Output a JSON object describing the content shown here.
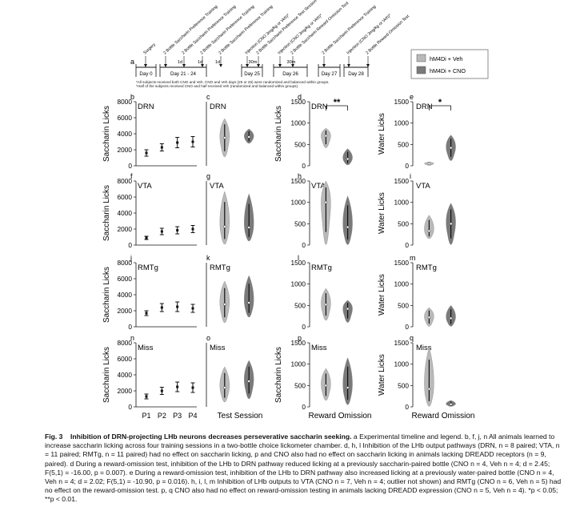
{
  "timeline": {
    "panel_letter": "a",
    "day_labels": [
      "Day 0",
      "Day 21 - 24",
      "Day 25",
      "Day 26",
      "Day 27",
      "Day 28"
    ],
    "gap_labels": [
      "1d",
      "1d",
      "1d",
      "30m",
      "30m"
    ],
    "events": [
      "Surgery",
      "2 Bottle Saccharin Preference Training",
      "2 Bottle Saccharin Preference Training",
      "2 Bottle Saccharin Preference Training",
      "2 Bottle Saccharin Preference Training",
      "Injection (CNO 3mg/kg or Veh)*",
      "2 Bottle Saccharin Preference Test Session",
      "Injection (CNO 3mg/kg or Veh)*",
      "2 Bottle Saccharin Reward Omission Test",
      "2 Bottle Saccharin Preference Training",
      "Injection (CNO 3mg/kg or Veh)*",
      "2 Bottle Reward Omission Test"
    ],
    "footnote_1": "*All subjects received both CNO and Veh. CNO and Veh days (25 or 26) were randomized and balanced within groups.",
    "footnote_2": "*Half of the subjects received CNO and half received Veh (randomized and balanced within groups)."
  },
  "legend": {
    "items": [
      {
        "label": "hM4Di + Veh",
        "color": "#b9b9b9"
      },
      {
        "label": "hM4Di + CNO",
        "color": "#7a7a7a"
      }
    ]
  },
  "row_labels": [
    "DRN",
    "VTA",
    "RMTg",
    "Miss"
  ],
  "chart_data": [
    {
      "panel": "b",
      "type": "scatter",
      "region": "DRN",
      "ylabel": "Saccharin Licks",
      "ylim": [
        0,
        8000
      ],
      "yticks": [
        0,
        2000,
        4000,
        6000,
        8000
      ],
      "categories": [
        "P1",
        "P2",
        "P3",
        "P4"
      ],
      "values": [
        1600,
        2300,
        2900,
        3000
      ],
      "errors": [
        400,
        450,
        650,
        650
      ]
    },
    {
      "panel": "c",
      "type": "violin",
      "region": "DRN",
      "ylim": [
        0,
        8000
      ],
      "series": [
        {
          "name": "hM4Di + Veh",
          "median": 3500,
          "min": 1100,
          "max": 5900
        },
        {
          "name": "hM4Di + CNO",
          "median": 3600,
          "min": 2800,
          "max": 4600
        }
      ]
    },
    {
      "panel": "d",
      "type": "violin",
      "region": "DRN",
      "ylabel": "Saccharin Licks",
      "ylim": [
        0,
        1500
      ],
      "yticks": [
        0,
        500,
        1000,
        1500
      ],
      "significance": "**",
      "series": [
        {
          "name": "hM4Di + Veh",
          "median": 700,
          "min": 420,
          "max": 880
        },
        {
          "name": "hM4Di + CNO",
          "median": 160,
          "min": 20,
          "max": 400
        }
      ]
    },
    {
      "panel": "e",
      "type": "violin",
      "region": "DRN",
      "ylabel": "Water Licks",
      "ylim": [
        0,
        1500
      ],
      "yticks": [
        0,
        500,
        1000,
        1500
      ],
      "significance": "*",
      "series": [
        {
          "name": "hM4Di + Veh",
          "median": 50,
          "min": 10,
          "max": 90
        },
        {
          "name": "hM4Di + CNO",
          "median": 420,
          "min": 120,
          "max": 720
        }
      ]
    },
    {
      "panel": "f",
      "type": "scatter",
      "region": "VTA",
      "ylabel": "Saccharin Licks",
      "ylim": [
        0,
        8000
      ],
      "yticks": [
        0,
        2000,
        4000,
        6000,
        8000
      ],
      "categories": [
        "P1",
        "P2",
        "P3",
        "P4"
      ],
      "values": [
        900,
        1700,
        1850,
        2000
      ],
      "errors": [
        200,
        400,
        450,
        450
      ]
    },
    {
      "panel": "g",
      "type": "violin",
      "region": "VTA",
      "ylim": [
        0,
        8000
      ],
      "series": [
        {
          "name": "hM4Di + Veh",
          "median": 2300,
          "min": 100,
          "max": 6700
        },
        {
          "name": "hM4Di + CNO",
          "median": 2200,
          "min": 500,
          "max": 6400
        }
      ]
    },
    {
      "panel": "h",
      "type": "violin",
      "region": "VTA",
      "ylim": [
        0,
        1500
      ],
      "yticks": [
        0,
        500,
        1000,
        1500
      ],
      "series": [
        {
          "name": "hM4Di + Veh",
          "median": 1000,
          "min": 10,
          "max": 1500
        },
        {
          "name": "hM4Di + CNO",
          "median": 420,
          "min": 10,
          "max": 1150
        }
      ]
    },
    {
      "panel": "i",
      "type": "violin",
      "region": "VTA",
      "ylabel": "Water Licks",
      "ylim": [
        0,
        1500
      ],
      "yticks": [
        0,
        500,
        1000,
        1500
      ],
      "series": [
        {
          "name": "hM4Di + Veh",
          "median": 330,
          "min": 150,
          "max": 700
        },
        {
          "name": "hM4Di + CNO",
          "median": 500,
          "min": 10,
          "max": 980
        }
      ]
    },
    {
      "panel": "j",
      "type": "scatter",
      "region": "RMTg",
      "ylabel": "Saccharin Licks",
      "ylim": [
        0,
        8000
      ],
      "yticks": [
        0,
        2000,
        4000,
        6000,
        8000
      ],
      "categories": [
        "P1",
        "P2",
        "P3",
        "P4"
      ],
      "values": [
        1700,
        2400,
        2500,
        2300
      ],
      "errors": [
        300,
        500,
        600,
        500
      ]
    },
    {
      "panel": "k",
      "type": "violin",
      "region": "RMTg",
      "ylim": [
        0,
        8000
      ],
      "series": [
        {
          "name": "hM4Di + Veh",
          "median": 2800,
          "min": 500,
          "max": 5700
        },
        {
          "name": "hM4Di + CNO",
          "median": 3000,
          "min": 1200,
          "max": 6400
        }
      ]
    },
    {
      "panel": "l",
      "type": "violin",
      "region": "RMTg",
      "ylim": [
        0,
        1500
      ],
      "yticks": [
        0,
        500,
        1000,
        1500
      ],
      "series": [
        {
          "name": "hM4Di + Veh",
          "median": 520,
          "min": 150,
          "max": 900
        },
        {
          "name": "hM4Di + CNO",
          "median": 420,
          "min": 100,
          "max": 620
        }
      ]
    },
    {
      "panel": "m",
      "type": "violin",
      "region": "RMTg",
      "ylabel": "Water Licks",
      "ylim": [
        0,
        1500
      ],
      "yticks": [
        0,
        500,
        1000,
        1500
      ],
      "series": [
        {
          "name": "hM4Di + Veh",
          "median": 220,
          "min": 10,
          "max": 450
        },
        {
          "name": "hM4Di + CNO",
          "median": 200,
          "min": 10,
          "max": 500
        }
      ]
    },
    {
      "panel": "n",
      "type": "scatter",
      "region": "Miss",
      "ylabel": "Saccharin Licks",
      "ylim": [
        0,
        8000
      ],
      "yticks": [
        0,
        2000,
        4000,
        6000,
        8000
      ],
      "categories": [
        "P1",
        "P2",
        "P3",
        "P4"
      ],
      "values": [
        1300,
        2000,
        2500,
        2400
      ],
      "errors": [
        300,
        450,
        600,
        600
      ]
    },
    {
      "panel": "o",
      "type": "violin",
      "region": "Miss",
      "xlabel": "Test Session",
      "ylim": [
        0,
        8000
      ],
      "series": [
        {
          "name": "hM4Di + Veh",
          "median": 2400,
          "min": 600,
          "max": 5000
        },
        {
          "name": "hM4Di + CNO",
          "median": 3200,
          "min": 1000,
          "max": 5800
        }
      ]
    },
    {
      "panel": "p",
      "type": "violin",
      "region": "Miss",
      "ylabel": "Saccharin Licks",
      "xlabel": "Reward Omission",
      "ylim": [
        0,
        1500
      ],
      "yticks": [
        0,
        500,
        1000,
        1500
      ],
      "series": [
        {
          "name": "hM4Di + Veh",
          "median": 500,
          "min": 150,
          "max": 900
        },
        {
          "name": "hM4Di + CNO",
          "median": 450,
          "min": 50,
          "max": 1150
        }
      ]
    },
    {
      "panel": "q",
      "type": "violin",
      "region": "Miss",
      "ylabel": "Water Licks",
      "xlabel": "Reward Omission",
      "ylim": [
        0,
        1500
      ],
      "yticks": [
        0,
        500,
        1000,
        1500
      ],
      "series": [
        {
          "name": "hM4Di + Veh",
          "median": 420,
          "min": 10,
          "max": 1400
        },
        {
          "name": "hM4Di + CNO",
          "median": 60,
          "min": 10,
          "max": 150
        }
      ]
    }
  ],
  "caption": {
    "fig_label": "Fig. 3",
    "title": "Inhibition of DRN-projecting LHb neurons decreases perseverative saccharin seeking.",
    "body": "a Experimental timeline and legend. b, f, j, n All animals learned to increase saccharin licking across four training sessions in a two-bottle choice lickometer chamber. d, h, l Inhibition of the LHb output pathways (DRN, n = 8 paired; VTA, n = 11 paired; RMTg, n = 11 paired) had no effect on saccharin licking, p and CNO also had no effect on saccharin licking in animals lacking DREADD receptors (n = 9, paired). d During a reward-omission test, inhibition of the LHb to DRN pathway reduced licking at a previously saccharin-paired bottle (CNO n = 4, Veh n = 4; d = 2.45; F(5,1) = -16.00, p = 0.007). e During a reward-omission test, inhibition of the LHb to DRN pathway also increased licking at a previously water-paired bottle (CNO n = 4, Veh n = 4; d = 2.02; F(5,1) = -10.90, p = 0.016). h, i, l, m Inhibition of LHb outputs to VTA (CNO n = 7, Veh n = 4; outlier not shown) and RMTg (CNO n = 6, Veh n = 5) had no effect on the reward-omission test. p, q CNO also had no effect on reward-omission testing in animals lacking DREADD expression (CNO n = 5, Veh n = 4). *p < 0.05; **p < 0.01."
  }
}
